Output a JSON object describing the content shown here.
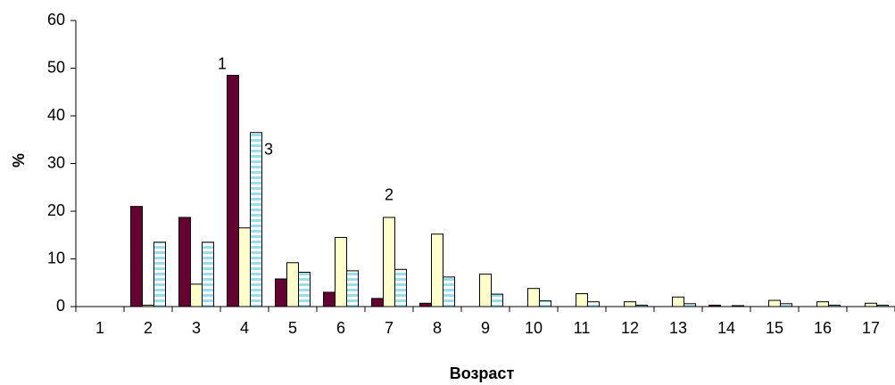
{
  "chart_data": {
    "type": "bar",
    "x_label": "Возраст",
    "y_label": "%",
    "categories": [
      "1",
      "2",
      "3",
      "4",
      "5",
      "6",
      "7",
      "8",
      "9",
      "10",
      "11",
      "12",
      "13",
      "14",
      "15",
      "16",
      "17"
    ],
    "series": [
      {
        "name": "1",
        "color": "#660033",
        "values": [
          0,
          21,
          18.7,
          48.5,
          5.8,
          3,
          1.7,
          0.7,
          0,
          0,
          0,
          0,
          0,
          0.3,
          0,
          0,
          0
        ]
      },
      {
        "name": "2",
        "color": "#ffffcc",
        "values": [
          0,
          0.3,
          4.7,
          16.5,
          9.2,
          14.5,
          18.7,
          15.2,
          6.8,
          3.8,
          2.7,
          1,
          2,
          0,
          1.3,
          1,
          0.7
        ]
      },
      {
        "name": "3",
        "color": "#99ddee",
        "pattern": "striped",
        "values": [
          0,
          13.5,
          13.5,
          36.5,
          7.2,
          7.5,
          7.8,
          6.2,
          2.6,
          1.2,
          1,
          0.3,
          0.6,
          0.2,
          0.6,
          0.3,
          0.3
        ]
      }
    ],
    "ylim": [
      0,
      60
    ],
    "yticks": [
      0,
      10,
      20,
      30,
      40,
      50,
      60
    ],
    "grid": false
  }
}
